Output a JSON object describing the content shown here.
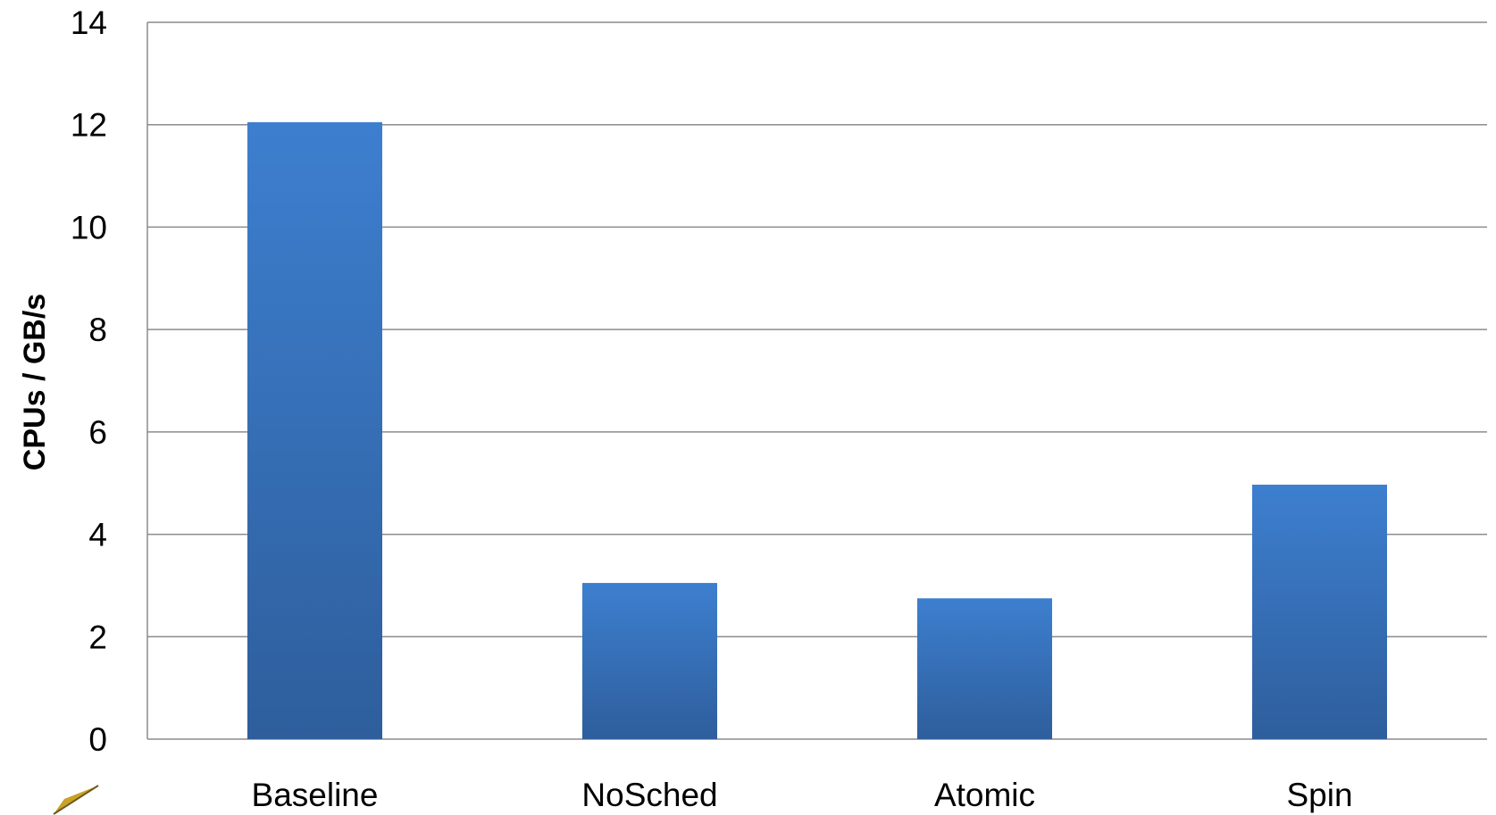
{
  "chart_data": {
    "type": "bar",
    "categories": [
      "Baseline",
      "NoSched",
      "Atomic",
      "Spin"
    ],
    "values": [
      12.05,
      3.05,
      2.75,
      4.97
    ],
    "ylabel": "CPUs / GB/s",
    "xlabel": "",
    "ylim": [
      0,
      14
    ],
    "yticks": [
      "0",
      "2",
      "4",
      "6",
      "8",
      "10",
      "12",
      "14"
    ],
    "grid": true,
    "legend": "none",
    "colors": {
      "bar_top": "#3d7fcf",
      "bar_bottom": "#2e5e9c",
      "grid": "#8c8c8c"
    }
  }
}
